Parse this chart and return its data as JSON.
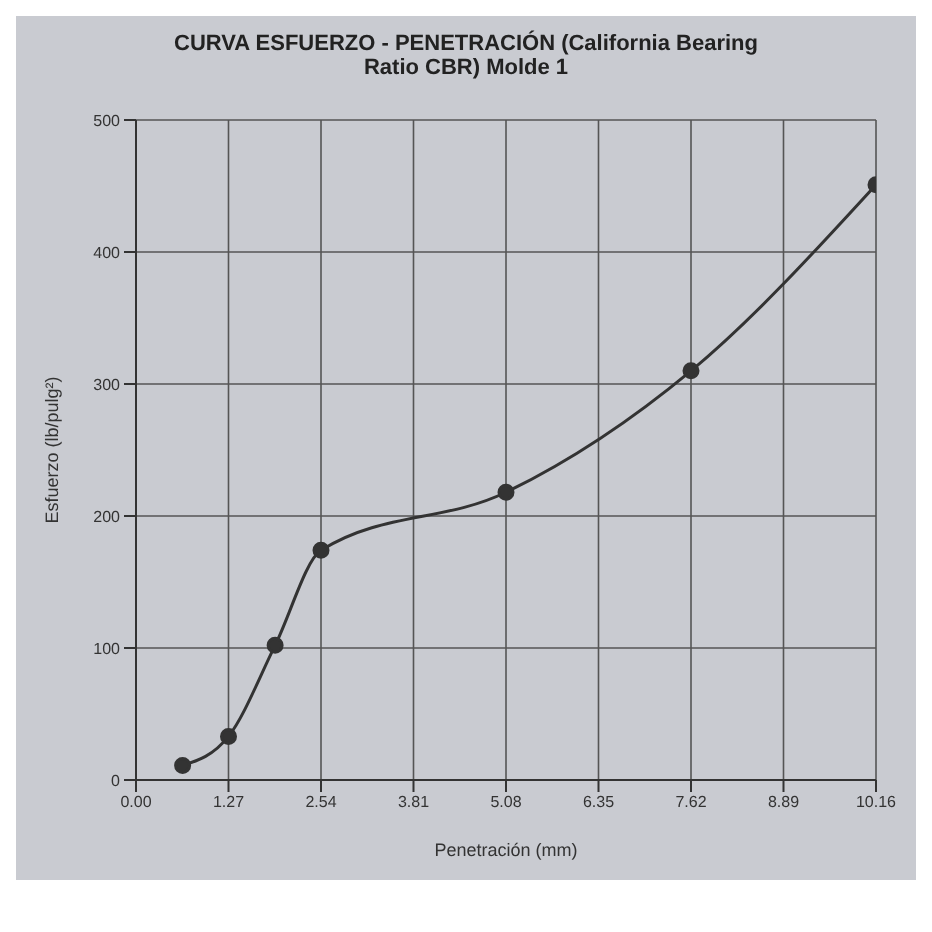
{
  "chart_data": {
    "type": "line",
    "title": "CURVA ESFUERZO - PENETRACIÓN (California Bearing",
    "subtitle": "Ratio CBR) Molde 1",
    "xlabel": "Penetración (mm)",
    "ylabel": "Esfuerzo (lb/pulg²)",
    "x": [
      0.64,
      1.27,
      1.91,
      2.54,
      5.08,
      7.62,
      10.16
    ],
    "series": [
      {
        "color": "#333333",
        "values": [
          11,
          33,
          102,
          174,
          218,
          310,
          451
        ]
      }
    ],
    "xlim": [
      0,
      10.16
    ],
    "xticks": [
      {
        "value": 0,
        "label": "0.00"
      },
      1.27,
      2.54,
      3.81,
      5.08,
      6.35,
      7.62,
      8.89,
      10.16
    ],
    "ylim": [
      0,
      500
    ],
    "yticks": [
      0,
      100,
      200,
      300,
      400,
      500
    ],
    "grid": true,
    "marker": "circle",
    "line_style": "solid"
  }
}
